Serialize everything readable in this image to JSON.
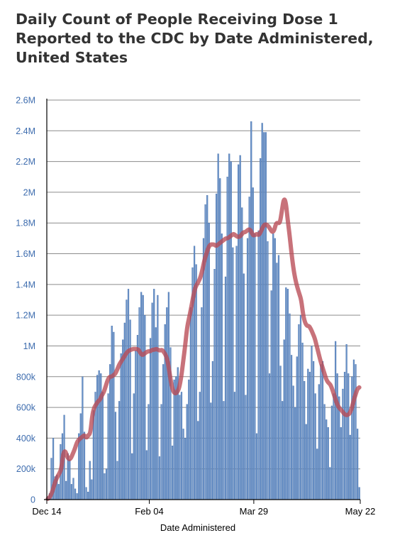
{
  "chart_data": {
    "type": "bar",
    "title_lines": [
      "Daily Count of People Receiving Dose 1",
      "Reported to the CDC by Date Administered,",
      "United States"
    ],
    "xlabel": "Date Administered",
    "ylabel": "",
    "x_tick_labels": [
      "Dec 14",
      "Feb 04",
      "Mar 29",
      "May 22"
    ],
    "y_tick_labels": [
      "0",
      "200k",
      "400k",
      "600k",
      "800k",
      "1M",
      "1.2M",
      "1.4M",
      "1.6M",
      "1.8M",
      "2M",
      "2.2M",
      "2.4M",
      "2.6M"
    ],
    "ylim": [
      0,
      2600000
    ],
    "grid": true,
    "start_date": "2020-12-14",
    "end_date": "2021-05-22",
    "bar_color": "#6b93c9",
    "line_color": "#b94a55",
    "series": [
      {
        "values": [
          20000,
          40000,
          270000,
          400000,
          150000,
          160000,
          100000,
          360000,
          430000,
          550000,
          120000,
          300000,
          260000,
          100000,
          140000,
          70000,
          40000,
          430000,
          560000,
          800000,
          440000,
          80000,
          50000,
          250000,
          130000,
          580000,
          700000,
          810000,
          840000,
          820000,
          700000,
          170000,
          200000,
          690000,
          880000,
          1130000,
          1090000,
          570000,
          250000,
          640000,
          950000,
          1040000,
          1150000,
          1300000,
          1370000,
          1170000,
          300000,
          690000,
          970000,
          1070000,
          1250000,
          1350000,
          1330000,
          1200000,
          320000,
          620000,
          1050000,
          1280000,
          1370000,
          1120000,
          1330000,
          280000,
          620000,
          880000,
          1140000,
          1250000,
          1350000,
          990000,
          350000,
          780000,
          800000,
          860000,
          680000,
          700000,
          460000,
          400000,
          620000,
          780000,
          1250000,
          1510000,
          1650000,
          1530000,
          510000,
          700000,
          1250000,
          1700000,
          1920000,
          1980000,
          1800000,
          630000,
          900000,
          1500000,
          1990000,
          2250000,
          2090000,
          1730000,
          640000,
          1450000,
          2100000,
          2250000,
          2200000,
          1640000,
          700000,
          1650000,
          2180000,
          2240000,
          1900000,
          1470000,
          680000,
          1700000,
          1970000,
          2460000,
          2030000,
          1730000,
          430000,
          1750000,
          2220000,
          2450000,
          2390000,
          2390000,
          1680000,
          820000,
          1360000,
          1730000,
          1700000,
          1540000,
          1590000,
          870000,
          640000,
          1040000,
          1380000,
          1370000,
          1210000,
          940000,
          740000,
          600000,
          930000,
          1140000,
          1200000,
          1020000,
          770000,
          490000,
          850000,
          830000,
          1000000,
          900000,
          690000,
          330000,
          750000,
          880000,
          900000,
          620000,
          520000,
          470000,
          210000,
          610000,
          690000,
          1030000,
          820000,
          670000,
          470000,
          720000,
          830000,
          1010000,
          820000,
          420000,
          800000,
          910000,
          880000,
          460000,
          80000
        ]
      },
      {
        "values": [
          5000,
          15000,
          40000,
          80000,
          120000,
          150000,
          170000,
          200000,
          300000,
          320000,
          280000,
          260000,
          270000,
          300000,
          330000,
          370000,
          390000,
          400000,
          410000,
          420000,
          400000,
          420000,
          430000,
          550000,
          600000,
          620000,
          640000,
          650000,
          680000,
          700000,
          740000,
          780000,
          800000,
          800000,
          810000,
          820000,
          850000,
          880000,
          900000,
          920000,
          940000,
          960000,
          970000,
          975000,
          980000,
          980000,
          980000,
          975000,
          950000,
          940000,
          950000,
          960000,
          965000,
          965000,
          975000,
          975000,
          980000,
          975000,
          970000,
          975000,
          960000,
          940000,
          900000,
          820000,
          740000,
          700000,
          690000,
          700000,
          730000,
          800000,
          900000,
          1000000,
          1120000,
          1180000,
          1240000,
          1310000,
          1370000,
          1400000,
          1420000,
          1450000,
          1500000,
          1560000,
          1600000,
          1640000,
          1660000,
          1660000,
          1660000,
          1650000,
          1660000,
          1670000,
          1680000,
          1690000,
          1700000,
          1700000,
          1710000,
          1720000,
          1730000,
          1720000,
          1710000,
          1710000,
          1720000,
          1740000,
          1740000,
          1750000,
          1760000,
          1750000,
          1720000,
          1720000,
          1730000,
          1720000,
          1740000,
          1770000,
          1790000,
          1790000,
          1780000,
          1760000,
          1740000,
          1750000,
          1800000,
          1800000,
          1800000,
          1880000,
          1960000,
          1940000,
          1820000,
          1720000,
          1600000,
          1500000,
          1430000,
          1380000,
          1340000,
          1300000,
          1200000,
          1150000,
          1130000,
          1130000,
          1110000,
          1080000,
          1050000,
          1000000,
          950000,
          900000,
          860000,
          820000,
          780000,
          760000,
          750000,
          720000,
          680000,
          640000,
          610000,
          590000,
          580000,
          560000,
          550000,
          550000,
          560000,
          590000,
          640000,
          680000,
          720000,
          730000
        ]
      }
    ]
  }
}
